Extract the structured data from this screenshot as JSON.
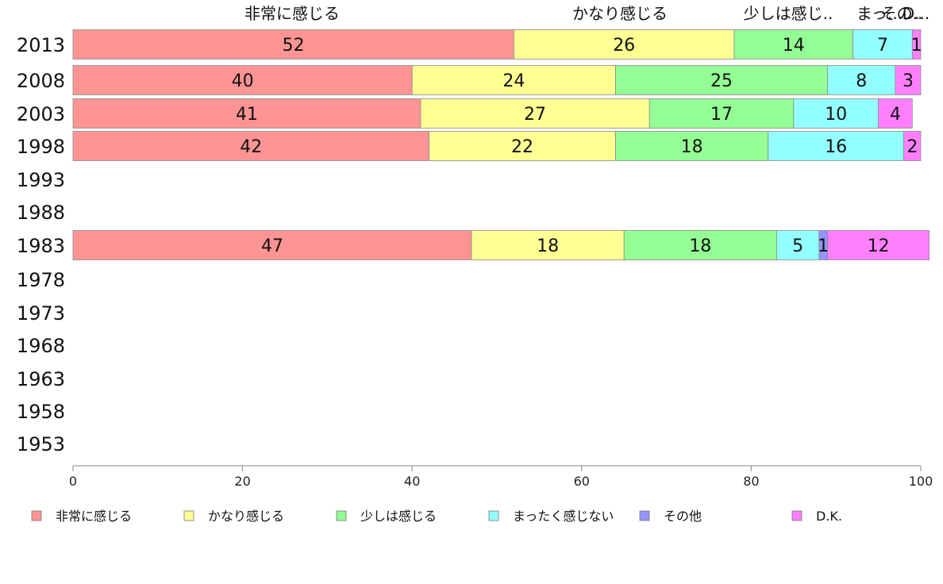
{
  "chart_data": {
    "type": "bar",
    "orientation": "horizontal",
    "stacked": true,
    "categories": [
      "2013",
      "2008",
      "2003",
      "1998",
      "1993",
      "1988",
      "1983",
      "1978",
      "1973",
      "1968",
      "1963",
      "1958",
      "1953"
    ],
    "series": [
      {
        "name": "非常に感じる",
        "color": "#ff9494",
        "values": [
          52,
          40,
          41,
          42,
          null,
          null,
          47,
          null,
          null,
          null,
          null,
          null,
          null
        ]
      },
      {
        "name": "かなり感じる",
        "color": "#ffff94",
        "values": [
          26,
          24,
          27,
          22,
          null,
          null,
          18,
          null,
          null,
          null,
          null,
          null,
          null
        ]
      },
      {
        "name": "少しは感じる",
        "color": "#94ff94",
        "values": [
          14,
          25,
          17,
          18,
          null,
          null,
          18,
          null,
          null,
          null,
          null,
          null,
          null
        ]
      },
      {
        "name": "まったく感じない",
        "color": "#94ffff",
        "values": [
          7,
          8,
          10,
          16,
          null,
          null,
          5,
          null,
          null,
          null,
          null,
          null,
          null
        ]
      },
      {
        "name": "その他",
        "color": "#9494ff",
        "values": [
          0,
          0,
          0,
          0,
          null,
          null,
          1,
          null,
          null,
          null,
          null,
          null,
          null
        ]
      },
      {
        "name": "D.K.",
        "color": "#ff80ff",
        "values": [
          1,
          3,
          4,
          2,
          null,
          null,
          12,
          null,
          null,
          null,
          null,
          null,
          null
        ]
      }
    ],
    "top_labels": [
      "非常に感じる",
      "かなり感じる",
      "少しは感じ..",
      "まっ...",
      "その..",
      "D..."
    ],
    "xlim": [
      0,
      100
    ],
    "xticks": [
      0,
      20,
      40,
      60,
      80,
      100
    ],
    "legend_position": "bottom",
    "grid": false
  }
}
